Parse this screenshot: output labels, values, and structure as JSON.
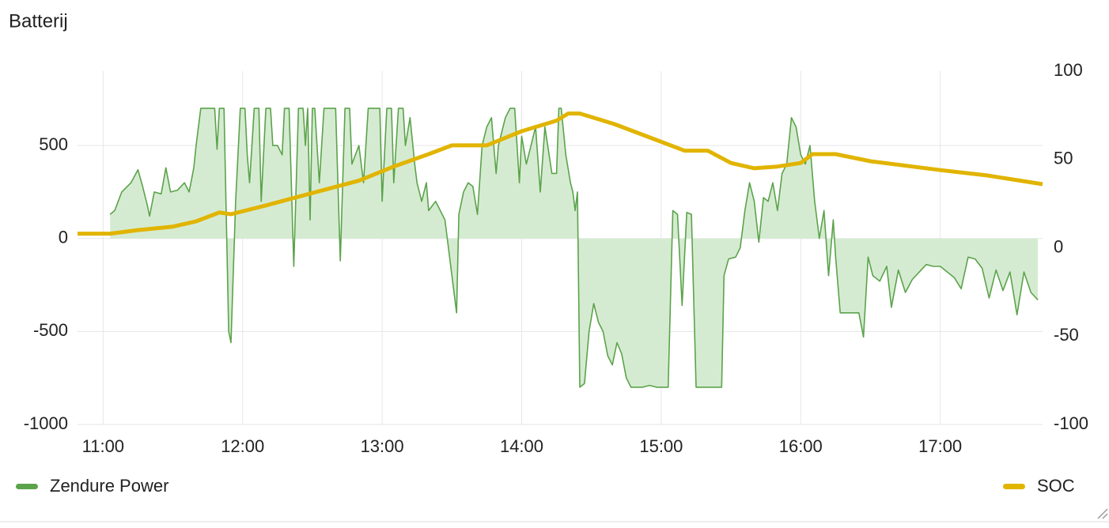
{
  "chart_data": {
    "type": "line",
    "title": "Batterij",
    "xlim": [
      "10:49",
      "17:44"
    ],
    "xticks": [
      "11:00",
      "12:00",
      "13:00",
      "14:00",
      "15:00",
      "16:00",
      "17:00"
    ],
    "ylim": [
      -1000,
      900
    ],
    "yticks": [
      -1000,
      -500,
      0,
      500
    ],
    "y2lim": [
      -100,
      100
    ],
    "y2ticks": [
      -100,
      -50,
      0,
      50,
      100
    ],
    "grid": true,
    "legend": "bottom",
    "series": [
      {
        "name": "Zendure Power",
        "color": "#5ba34b",
        "fill": "#d5ebd1",
        "x": [
          "11:03",
          "11:05",
          "11:08",
          "11:12",
          "11:15",
          "11:17",
          "11:19",
          "11:20",
          "11:22",
          "11:25",
          "11:27",
          "11:29",
          "11:32",
          "11:35",
          "11:37",
          "11:39",
          "11:40",
          "11:42",
          "11:46",
          "11:48",
          "11:49",
          "11:50",
          "11:52",
          "11:54",
          "11:55",
          "11:57",
          "11:59",
          "12:01",
          "12:02",
          "12:03",
          "12:05",
          "12:07",
          "12:08",
          "12:10",
          "12:12",
          "12:13",
          "12:15",
          "12:17",
          "12:18",
          "12:20",
          "12:22",
          "12:24",
          "12:26",
          "12:27",
          "12:28",
          "12:29",
          "12:30",
          "12:31",
          "12:33",
          "12:35",
          "12:37",
          "12:40",
          "12:42",
          "12:44",
          "12:46",
          "12:47",
          "12:50",
          "12:52",
          "12:54",
          "12:57",
          "12:59",
          "13:00",
          "13:02",
          "13:04",
          "13:05",
          "13:07",
          "13:09",
          "13:10",
          "13:12",
          "13:14",
          "13:15",
          "13:17",
          "13:19",
          "13:20",
          "13:23",
          "13:25",
          "13:27",
          "13:30",
          "13:32",
          "13:33",
          "13:35",
          "13:37",
          "13:39",
          "13:41",
          "13:43",
          "13:45",
          "13:47",
          "13:49",
          "13:50",
          "13:53",
          "13:55",
          "13:57",
          "13:59",
          "14:00",
          "14:02",
          "14:04",
          "14:06",
          "14:08",
          "14:10",
          "14:13",
          "14:15",
          "14:16",
          "14:17",
          "14:19",
          "14:21",
          "14:22",
          "14:23",
          "14:24",
          "14:25",
          "14:27",
          "14:29",
          "14:31",
          "14:33",
          "14:35",
          "14:37",
          "14:39",
          "14:41",
          "14:43",
          "14:45",
          "14:47",
          "14:52",
          "14:55",
          "14:58",
          "15:03",
          "15:05",
          "15:07",
          "15:09",
          "15:11",
          "15:13",
          "15:15",
          "15:20",
          "15:26",
          "15:27",
          "15:29",
          "15:32",
          "15:34",
          "15:36",
          "15:38",
          "15:40",
          "15:42",
          "15:44",
          "15:46",
          "15:48",
          "15:50",
          "15:52",
          "15:54",
          "15:56",
          "15:58",
          "16:00",
          "16:02",
          "16:04",
          "16:06",
          "16:08",
          "16:10",
          "16:12",
          "16:14",
          "16:15",
          "16:17",
          "16:20",
          "16:25",
          "16:27",
          "16:29",
          "16:31",
          "16:34",
          "16:37",
          "16:39",
          "16:42",
          "16:45",
          "16:48",
          "16:51",
          "16:54",
          "16:57",
          "17:00",
          "17:03",
          "17:06",
          "17:09",
          "17:12",
          "17:15",
          "17:18",
          "17:21",
          "17:24",
          "17:27",
          "17:30",
          "17:33",
          "17:36",
          "17:39",
          "17:42"
        ],
        "values": [
          130,
          150,
          250,
          300,
          370,
          280,
          180,
          120,
          250,
          240,
          380,
          250,
          260,
          300,
          250,
          380,
          500,
          700,
          700,
          700,
          480,
          700,
          700,
          -500,
          -560,
          200,
          700,
          700,
          450,
          300,
          700,
          700,
          200,
          700,
          700,
          500,
          500,
          450,
          700,
          700,
          -150,
          700,
          700,
          500,
          700,
          100,
          700,
          700,
          300,
          700,
          700,
          700,
          -120,
          700,
          700,
          400,
          500,
          300,
          700,
          700,
          700,
          200,
          700,
          700,
          300,
          700,
          700,
          500,
          650,
          400,
          300,
          200,
          300,
          150,
          200,
          150,
          100,
          -200,
          -400,
          130,
          250,
          300,
          280,
          130,
          500,
          600,
          650,
          350,
          500,
          650,
          700,
          700,
          300,
          550,
          400,
          500,
          600,
          250,
          600,
          350,
          350,
          700,
          700,
          450,
          300,
          250,
          150,
          250,
          -800,
          -780,
          -500,
          -350,
          -450,
          -500,
          -630,
          -680,
          -560,
          -620,
          -750,
          -800,
          -800,
          -790,
          -800,
          -800,
          150,
          130,
          -360,
          140,
          130,
          -800,
          -800,
          -800,
          -200,
          -110,
          -100,
          -50,
          150,
          300,
          200,
          -20,
          220,
          200,
          300,
          150,
          350,
          400,
          650,
          600,
          450,
          400,
          500,
          200,
          0,
          150,
          -200,
          100,
          -100,
          -400,
          -400,
          -400,
          -530,
          -100,
          -200,
          -230,
          -150,
          -370,
          -170,
          -290,
          -220,
          -180,
          -140,
          -150,
          -150,
          -180,
          -210,
          -270,
          -100,
          -110,
          -160,
          -320,
          -170,
          -280,
          -180,
          -410,
          -180,
          -290,
          -330
        ]
      },
      {
        "name": "SOC",
        "color": "#e1b400",
        "axis": "y2",
        "x": [
          "10:49",
          "11:03",
          "11:15",
          "11:30",
          "11:40",
          "11:50",
          "11:55",
          "12:10",
          "12:30",
          "12:50",
          "13:05",
          "13:20",
          "13:30",
          "13:45",
          "14:00",
          "14:15",
          "14:20",
          "14:25",
          "14:40",
          "15:00",
          "15:10",
          "15:20",
          "15:30",
          "15:40",
          "15:50",
          "16:00",
          "16:05",
          "16:15",
          "16:30",
          "17:00",
          "17:20",
          "17:44"
        ],
        "values": [
          8,
          8,
          10,
          12,
          15,
          20,
          19,
          24,
          31,
          38,
          46,
          53,
          58,
          58,
          66,
          72,
          76,
          76,
          70,
          60,
          55,
          55,
          48,
          45,
          46,
          48,
          53,
          53,
          49,
          44,
          41,
          36
        ]
      }
    ]
  }
}
